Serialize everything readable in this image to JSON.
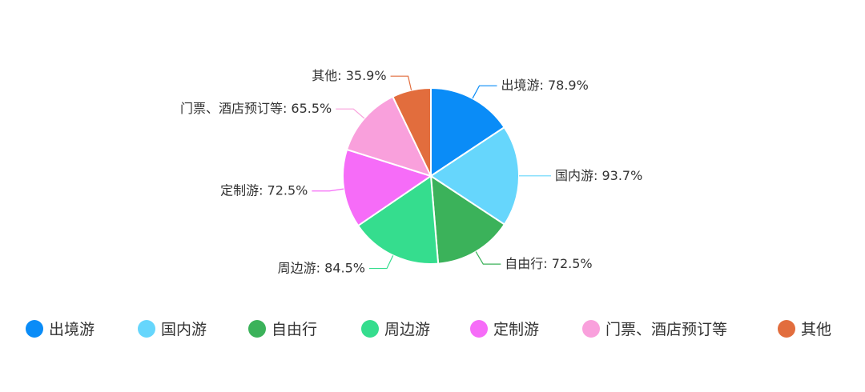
{
  "chart_data": {
    "type": "pie",
    "categories": [
      "出境游",
      "国内游",
      "自由行",
      "周边游",
      "定制游",
      "门票、酒店预订等",
      "其他"
    ],
    "values": [
      78.9,
      93.7,
      72.5,
      84.5,
      72.5,
      65.5,
      35.9
    ],
    "labels": [
      "出境游: 78.9%",
      "国内游: 93.7%",
      "自由行: 72.5%",
      "周边游: 84.5%",
      "定制游: 72.5%",
      "门票、酒店预订等: 65.5%",
      "其他: 35.9%"
    ],
    "colors": [
      "#0a8cf7",
      "#66d6fc",
      "#3bb25a",
      "#35dd8e",
      "#f66cf8",
      "#f9a0dc",
      "#e26d3d"
    ],
    "start_angle": "12 o'clock, clockwise",
    "legend_position": "bottom"
  }
}
